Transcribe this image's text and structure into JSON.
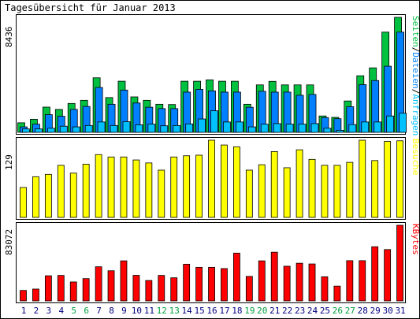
{
  "title": "Tagesübersicht für Januar 2013",
  "colors": {
    "seiten": "#00c040",
    "dateien": "#0080ff",
    "anfragen": "#00c0ff",
    "besuche": "#ffff00",
    "kbytes": "#ff0000",
    "weekend_label": "#00a040",
    "weekday_label": "#000080",
    "outline": "#000000"
  },
  "chart_data": [
    {
      "type": "bar",
      "name": "top",
      "ymax_label": "8436",
      "ymax": 8436,
      "legend": [
        {
          "text": "Seiten",
          "color": "#00c040"
        },
        {
          "text": "Dateien",
          "color": "#0080ff"
        },
        {
          "text": "Anfragen",
          "color": "#00c0ff"
        }
      ],
      "legend_separators": [
        "/",
        "/"
      ],
      "categories": [
        "1",
        "2",
        "3",
        "4",
        "5",
        "6",
        "7",
        "8",
        "9",
        "10",
        "11",
        "12",
        "13",
        "14",
        "15",
        "16",
        "17",
        "18",
        "19",
        "20",
        "21",
        "22",
        "23",
        "24",
        "25",
        "26",
        "27",
        "28",
        "29",
        "30",
        "31"
      ],
      "series": [
        {
          "name": "Seiten",
          "values": [
            700,
            960,
            1850,
            1680,
            2120,
            2350,
            4000,
            2550,
            3750,
            2600,
            2350,
            2060,
            2040,
            3750,
            3750,
            3850,
            3750,
            3750,
            2060,
            3480,
            3740,
            3480,
            3480,
            3480,
            1200,
            1100,
            2300,
            4150,
            4730,
            7350,
            8436
          ]
        },
        {
          "name": "Dateien",
          "values": [
            400,
            600,
            1300,
            1180,
            1680,
            1900,
            3290,
            2060,
            3100,
            2150,
            1840,
            1740,
            1740,
            2950,
            3150,
            3040,
            2950,
            2950,
            1840,
            3010,
            2950,
            2950,
            2720,
            2780,
            1080,
            1000,
            1880,
            3500,
            3800,
            4850,
            7350
          ]
        },
        {
          "name": "Anfragen",
          "values": [
            250,
            250,
            300,
            450,
            400,
            500,
            760,
            500,
            780,
            550,
            600,
            480,
            500,
            620,
            980,
            1580,
            760,
            760,
            400,
            600,
            640,
            600,
            600,
            640,
            300,
            150,
            570,
            760,
            760,
            1200,
            1400
          ]
        }
      ],
      "weekend_days": [
        "5",
        "6",
        "12",
        "13",
        "19",
        "20",
        "26",
        "27"
      ]
    },
    {
      "type": "bar",
      "name": "middle",
      "ymax_label": "129",
      "ymax": 129,
      "legend": [
        {
          "text": "Besuche",
          "color": "#ffff00"
        }
      ],
      "categories": [
        "1",
        "2",
        "3",
        "4",
        "5",
        "6",
        "7",
        "8",
        "9",
        "10",
        "11",
        "12",
        "13",
        "14",
        "15",
        "16",
        "17",
        "18",
        "19",
        "20",
        "21",
        "22",
        "23",
        "24",
        "25",
        "26",
        "27",
        "28",
        "29",
        "30",
        "31"
      ],
      "values": [
        50,
        68,
        72,
        87,
        74,
        89,
        105,
        101,
        101,
        96,
        91,
        79,
        101,
        103,
        104,
        129,
        121,
        118,
        79,
        88,
        110,
        83,
        113,
        97,
        87,
        87,
        92,
        129,
        95,
        127,
        128
      ]
    },
    {
      "type": "bar",
      "name": "bottom",
      "ymax_label": "83072",
      "ymax": 83072,
      "legend": [
        {
          "text": "KBytes",
          "color": "#ff0000"
        }
      ],
      "categories": [
        "1",
        "2",
        "3",
        "4",
        "5",
        "6",
        "7",
        "8",
        "9",
        "10",
        "11",
        "12",
        "13",
        "14",
        "15",
        "16",
        "17",
        "18",
        "19",
        "20",
        "21",
        "22",
        "23",
        "24",
        "25",
        "26",
        "27",
        "28",
        "29",
        "30",
        "31"
      ],
      "values": [
        11500,
        13000,
        27600,
        28000,
        20800,
        24500,
        37500,
        33100,
        44000,
        28100,
        22400,
        28000,
        25400,
        40300,
        36900,
        36900,
        35500,
        52500,
        26900,
        44000,
        53500,
        38100,
        41400,
        40600,
        26500,
        16300,
        44200,
        44200,
        59500,
        56400,
        83072
      ]
    }
  ]
}
